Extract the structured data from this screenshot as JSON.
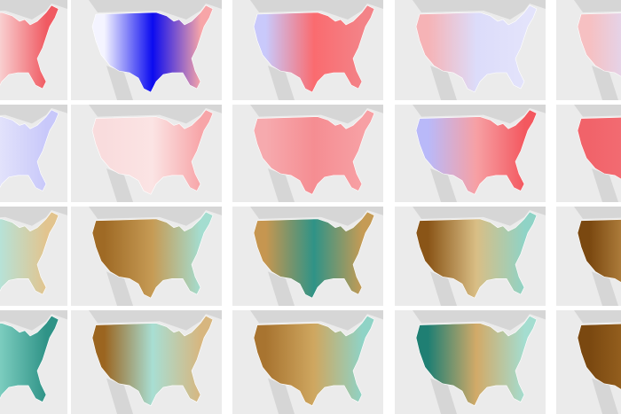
{
  "grid": {
    "rows": [
      {
        "tiles": [
          {
            "west": "#f7c7c9",
            "center": "#f9d3d4",
            "east": "#f05a62"
          },
          {
            "west": "#f4f4ff",
            "center": "#0b0bf0",
            "east": "#f7a5a8"
          },
          {
            "west": "#c9c9fb",
            "center": "#fa6b6f",
            "east": "#f38388"
          },
          {
            "west": "#f6b3b6",
            "center": "#dcdcfa",
            "east": "#e3e3fb"
          },
          {
            "west": "#f6c0c2",
            "center": "#dcdcfa",
            "east": "#c9c9fb"
          }
        ]
      },
      {
        "tiles": [
          {
            "west": "#f7f2f6",
            "center": "#e3e3fb",
            "east": "#c8c8fa"
          },
          {
            "west": "#f9dcdd",
            "center": "#fbe4e4",
            "east": "#f7a5a8"
          },
          {
            "west": "#f6aaae",
            "center": "#f58d92",
            "east": "#f7a0a4"
          },
          {
            "west": "#b9b9f9",
            "center": "#f7a0a4",
            "east": "#f3585f"
          },
          {
            "west": "#f1636a",
            "center": "#f36f75",
            "east": "#f36f75"
          }
        ]
      },
      {
        "tiles": [
          {
            "west": "#d8b57a",
            "center": "#b5e3da",
            "east": "#e2c48e"
          },
          {
            "west": "#9f6a25",
            "center": "#c69b55",
            "east": "#a4ddd0"
          },
          {
            "west": "#c69650",
            "center": "#2f9387",
            "east": "#c59b55"
          },
          {
            "west": "#8a5517",
            "center": "#d9be85",
            "east": "#8fd3c6"
          },
          {
            "west": "#7a4810",
            "center": "#c69650",
            "east": "#4fb0a3"
          }
        ]
      },
      {
        "tiles": [
          {
            "west": "#cdeee7",
            "center": "#7fcfc1",
            "east": "#2f9387"
          },
          {
            "west": "#9b6520",
            "center": "#a8ded3",
            "east": "#d7b67f"
          },
          {
            "west": "#a87430",
            "center": "#cfa760",
            "east": "#8fd3c6"
          },
          {
            "west": "#1f7f73",
            "center": "#d2aa68",
            "east": "#a4ddd0"
          },
          {
            "west": "#7a4810",
            "center": "#a06a25",
            "east": "#b88542"
          }
        ]
      }
    ]
  }
}
